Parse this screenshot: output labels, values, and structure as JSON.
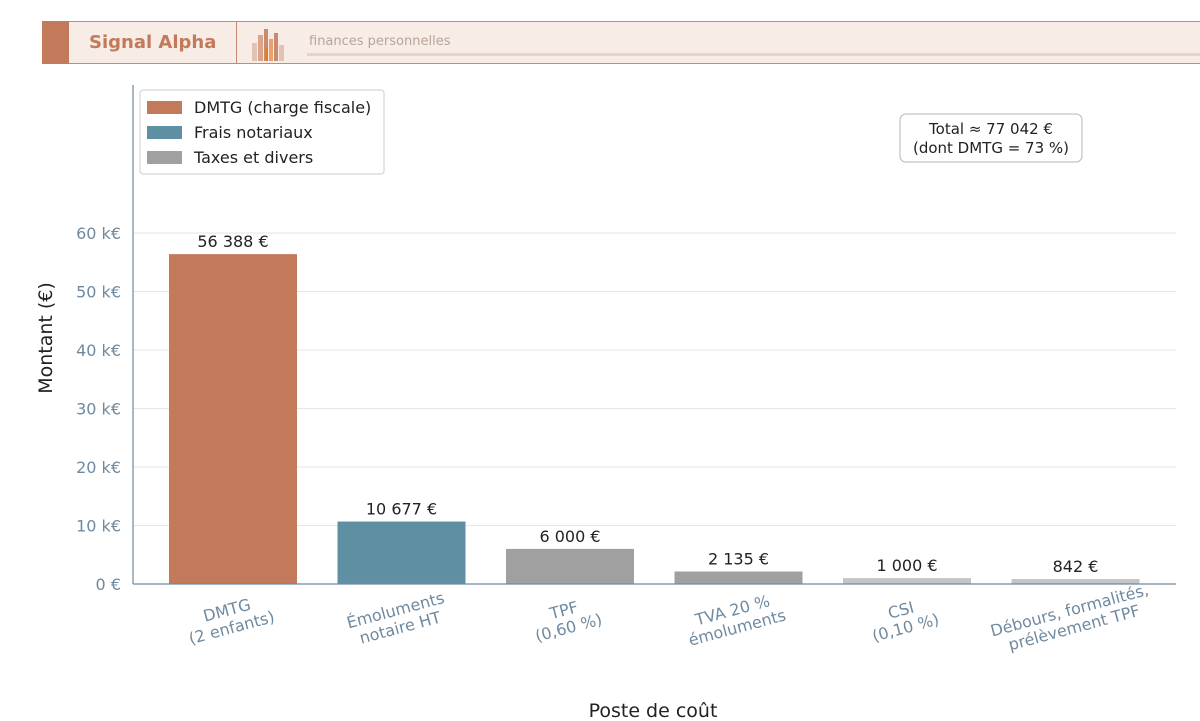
{
  "header": {
    "brand": "Signal Alpha",
    "tagline": "finances personnelles",
    "brand_color": "#c27a5a",
    "background_color": "#f7ece6"
  },
  "chart_data": {
    "type": "bar",
    "categories": [
      [
        "DMTG",
        "(2 enfants)"
      ],
      [
        "Émoluments",
        "notaire HT"
      ],
      [
        "TPF",
        "(0,60 %)"
      ],
      [
        "TVA 20 %",
        "émoluments"
      ],
      [
        "CSI",
        "(0,10 %)"
      ],
      [
        "Débours, formalités,",
        "prélèvement TPF"
      ]
    ],
    "values": [
      56388,
      10677,
      6000,
      2135,
      1000,
      842
    ],
    "value_labels": [
      "56 388 €",
      "10 677 €",
      "6 000 €",
      "2 135 €",
      "1 000 €",
      "842 €"
    ],
    "groups": [
      "DMTG (charge fiscale)",
      "Frais notariaux",
      "Taxes et divers",
      "Taxes et divers",
      "Taxes et divers",
      "Taxes et divers"
    ],
    "bar_colors": [
      "#c27a5a",
      "#5e8fa3",
      "#a0a0a0",
      "#a0a0a0",
      "#c4c4c4",
      "#c4c4c4"
    ],
    "legend": [
      {
        "name": "DMTG (charge fiscale)",
        "color": "#c27a5a"
      },
      {
        "name": "Frais notariaux",
        "color": "#5e8fa3"
      },
      {
        "name": "Taxes et divers",
        "color": "#a0a0a0"
      }
    ],
    "legend_position": "top-left",
    "xlabel": "Poste de coût",
    "ylabel": "Montant (€)",
    "yticks": [
      0,
      10000,
      20000,
      30000,
      40000,
      50000,
      60000
    ],
    "ytick_labels": [
      "0 €",
      "10 k€",
      "20 k€",
      "30 k€",
      "40 k€",
      "50 k€",
      "60 k€"
    ],
    "ylim": [
      0,
      85000
    ],
    "grid": "horizontal",
    "annotation": [
      "Total ≈ 77 042 €",
      "(dont DMTG = 73 %)"
    ]
  }
}
